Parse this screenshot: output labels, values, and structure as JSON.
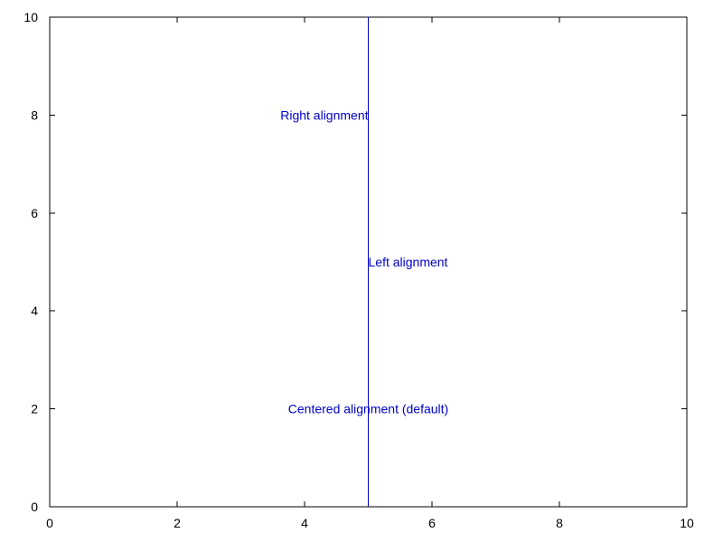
{
  "chart_data": {
    "type": "line",
    "title": "",
    "xlabel": "",
    "ylabel": "",
    "xlim": [
      0,
      10
    ],
    "ylim": [
      0,
      10
    ],
    "x_ticks": [
      0,
      2,
      4,
      6,
      8,
      10
    ],
    "y_ticks": [
      0,
      2,
      4,
      6,
      8,
      10
    ],
    "x_tick_labels": [
      "0",
      "2",
      "4",
      "6",
      "8",
      "10"
    ],
    "y_tick_labels": [
      "0",
      "2",
      "4",
      "6",
      "8",
      "10"
    ],
    "grid": false,
    "series": [
      {
        "x": [
          5,
          5
        ],
        "y": [
          0,
          10
        ],
        "color": "#0000cc"
      }
    ],
    "annotations": [
      {
        "text": "Right alignment",
        "x": 5,
        "y": 8,
        "align": "right",
        "color": "#0000cc"
      },
      {
        "text": "Left alignment",
        "x": 5,
        "y": 5,
        "align": "left",
        "color": "#0000cc"
      },
      {
        "text": "Centered alignment (default)",
        "x": 5,
        "y": 2,
        "align": "center",
        "color": "#0000cc"
      }
    ]
  }
}
